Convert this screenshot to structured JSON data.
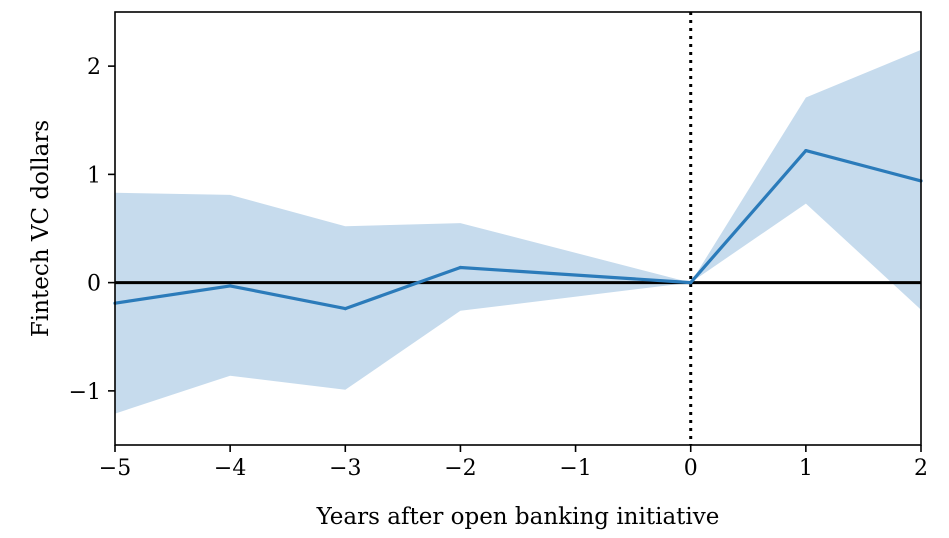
{
  "chart_data": {
    "type": "line",
    "title": "",
    "xlabel": "Years after open banking initiative",
    "ylabel": "Fintech VC dollars",
    "xlim": [
      -5,
      2
    ],
    "ylim": [
      -1.5,
      2.5
    ],
    "x_ticks": [
      -5,
      -4,
      -3,
      -2,
      -1,
      0,
      1,
      2
    ],
    "x_tick_labels": [
      "−5",
      "−4",
      "−3",
      "−2",
      "−1",
      "0",
      "1",
      "2"
    ],
    "y_ticks": [
      -1,
      0,
      1,
      2
    ],
    "y_tick_labels": [
      "−1",
      "0",
      "1",
      "2"
    ],
    "grid": false,
    "reference_lines": [
      {
        "orientation": "horizontal",
        "value": 0,
        "style": "solid",
        "color": "#000000"
      },
      {
        "orientation": "vertical",
        "value": 0,
        "style": "dotted",
        "color": "#000000"
      }
    ],
    "series": [
      {
        "x": [
          -5,
          -4,
          -3,
          -2,
          0,
          1,
          2
        ],
        "y": [
          -0.19,
          -0.03,
          -0.24,
          0.14,
          0.0,
          1.22,
          0.94
        ],
        "lower": [
          -1.21,
          -0.86,
          -0.99,
          -0.26,
          0.0,
          0.73,
          -0.25
        ],
        "upper": [
          0.83,
          0.81,
          0.52,
          0.55,
          0.0,
          1.71,
          2.15
        ],
        "line_color": "#2b7bba",
        "band_color": "#c6dbed"
      }
    ]
  }
}
